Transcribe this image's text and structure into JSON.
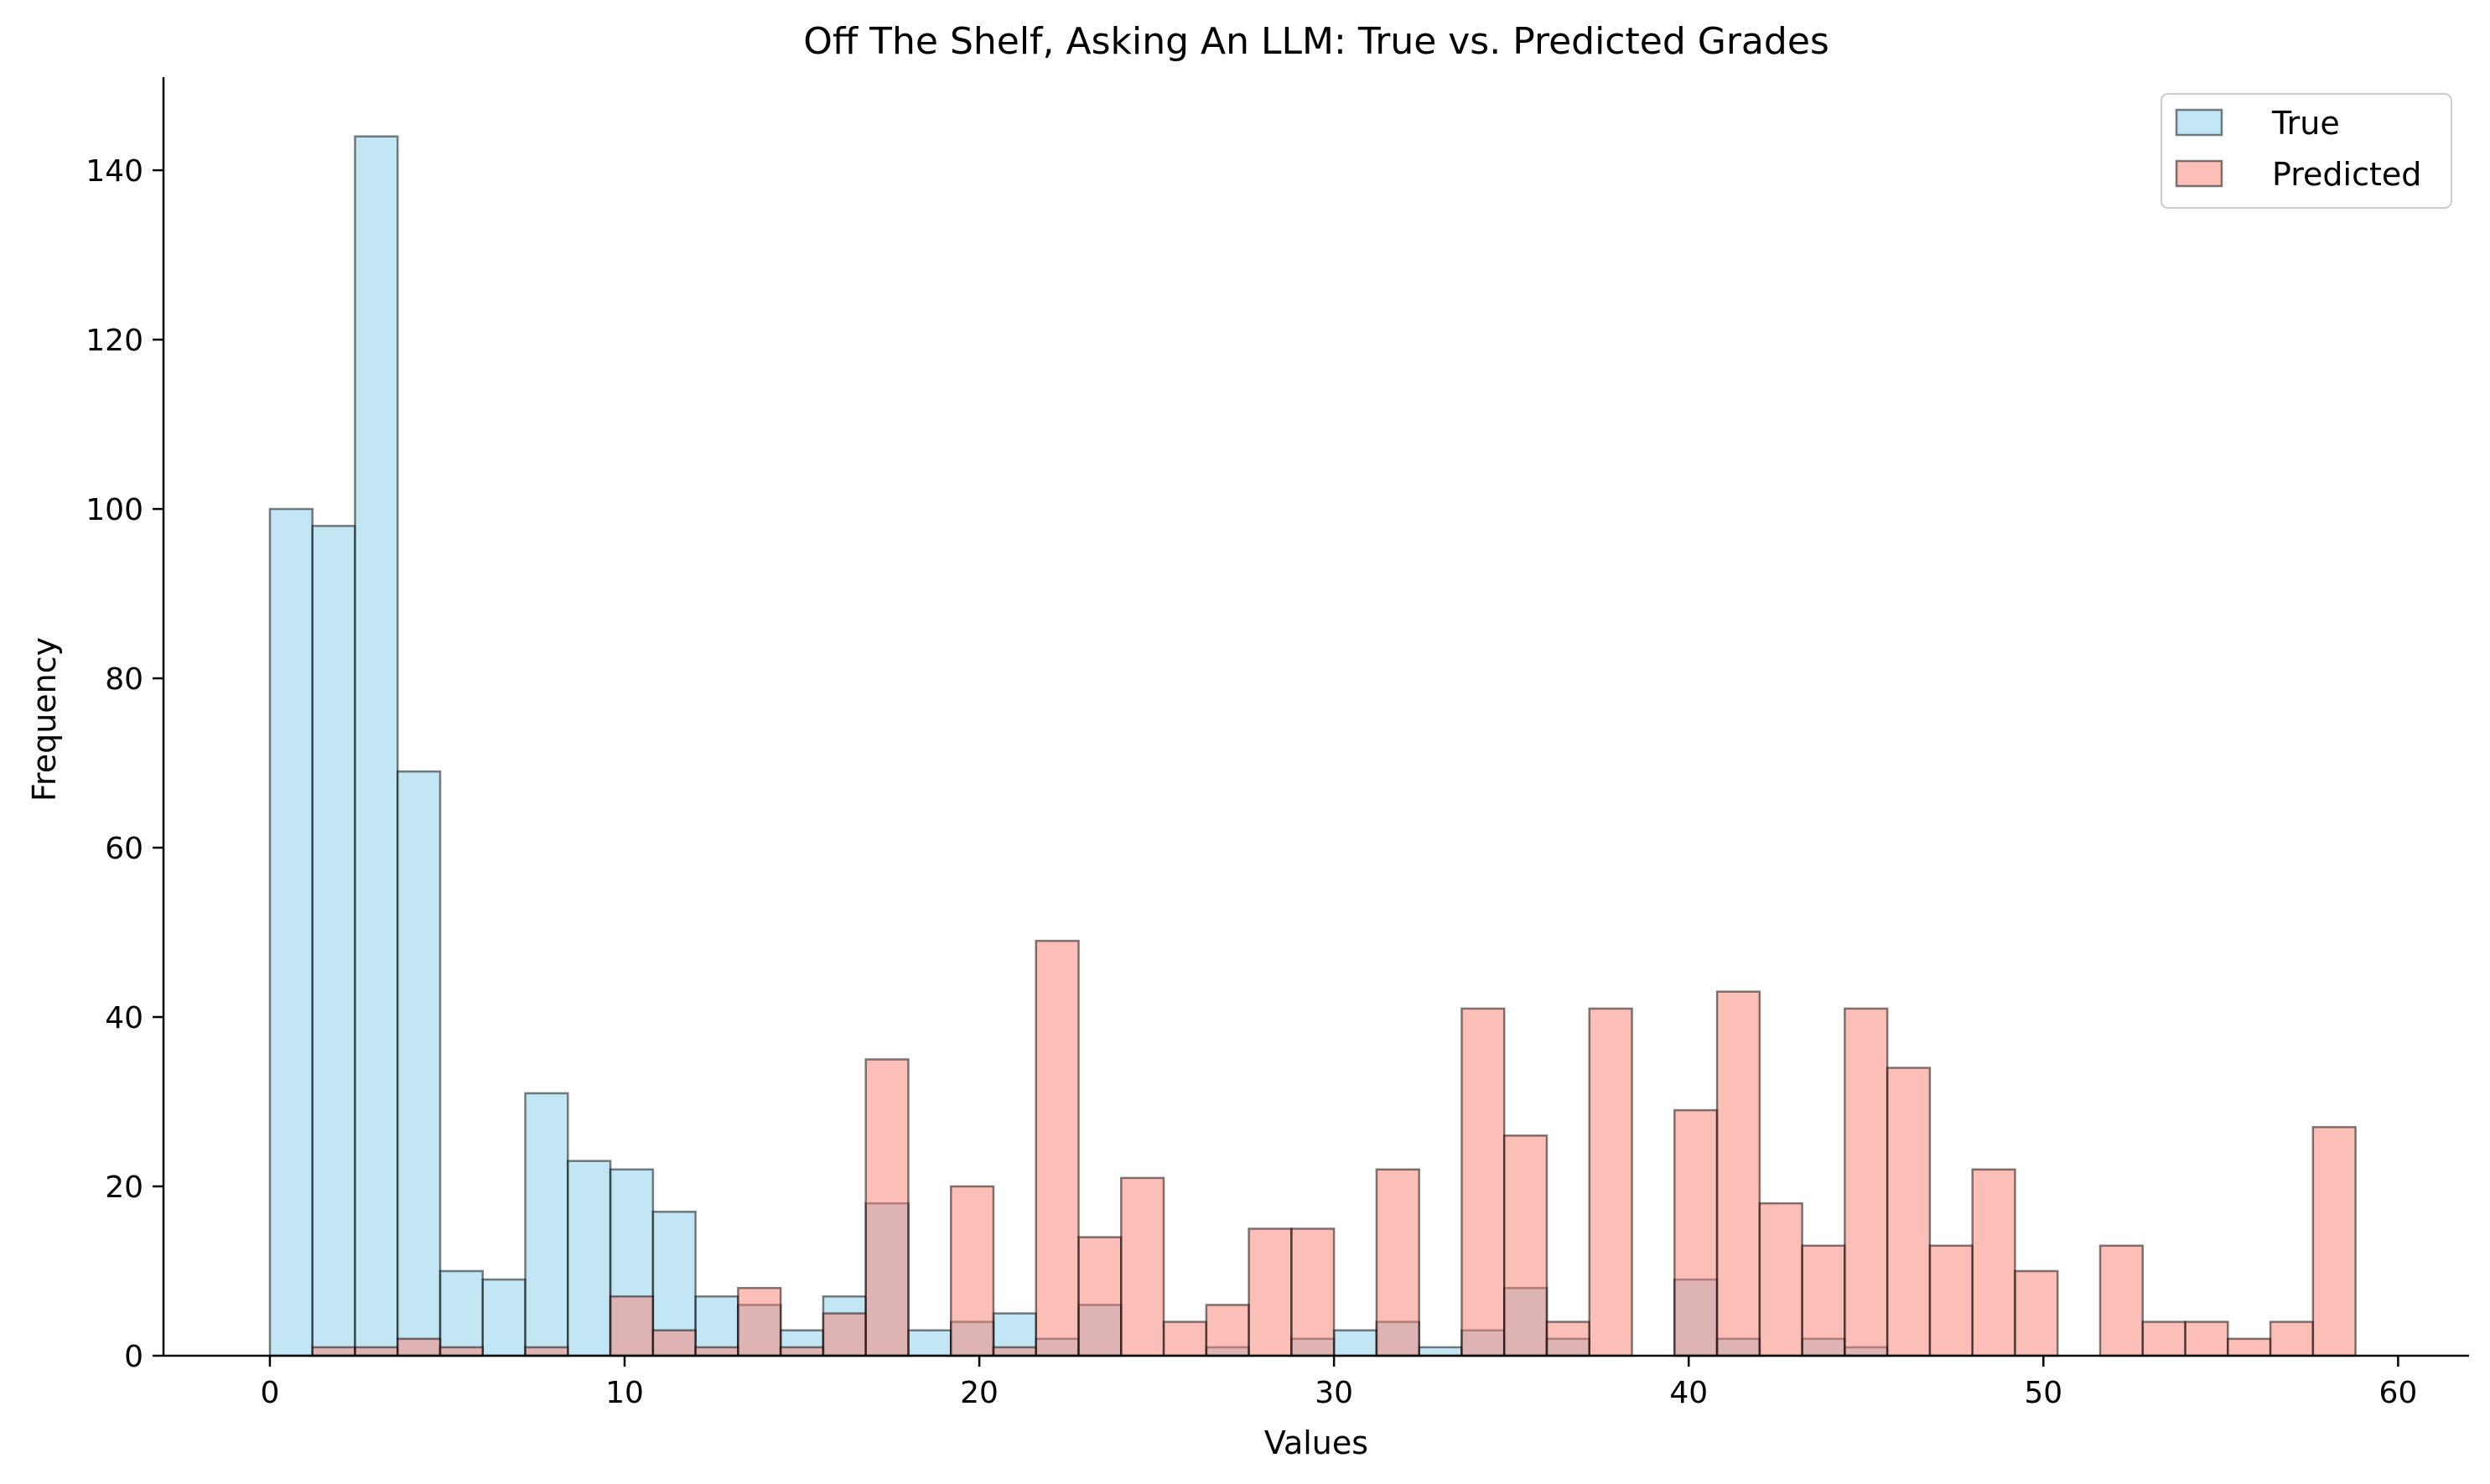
{
  "chart_data": {
    "type": "bar",
    "title": "Off The Shelf, Asking An LLM: True vs. Predicted Grades",
    "xlabel": "Values",
    "ylabel": "Frequency",
    "xlim": [
      -3,
      62
    ],
    "ylim": [
      0,
      151
    ],
    "xticks": [
      0,
      10,
      20,
      30,
      40,
      50,
      60
    ],
    "yticks": [
      0,
      20,
      40,
      60,
      80,
      100,
      120,
      140
    ],
    "grid": false,
    "legend": "top-right",
    "bin_width": 1.2,
    "bin_starts": [
      0,
      1.2,
      2.4,
      3.6,
      4.8,
      6,
      7.2,
      8.4,
      9.6,
      10.8,
      12,
      13.2,
      14.4,
      15.6,
      16.8,
      18,
      19.2,
      20.4,
      21.6,
      22.8,
      24,
      25.2,
      26.4,
      27.6,
      28.8,
      30,
      31.2,
      32.4,
      33.6,
      34.8,
      36,
      37.2,
      38.4,
      39.6,
      40.8,
      42,
      43.2,
      44.4,
      45.6,
      46.8,
      48,
      49.2,
      50.4,
      51.6,
      52.8,
      54,
      55.2,
      56.4,
      57.6
    ],
    "series": [
      {
        "name": "True",
        "color": "#87CEEB",
        "values": [
          100,
          98,
          144,
          69,
          10,
          9,
          31,
          23,
          22,
          17,
          7,
          6,
          3,
          7,
          18,
          3,
          4,
          5,
          2,
          6,
          0,
          0,
          1,
          0,
          2,
          3,
          4,
          1,
          3,
          8,
          2,
          0,
          0,
          9,
          2,
          0,
          2,
          1,
          0,
          0,
          0,
          0,
          0,
          0,
          0,
          0,
          0,
          0,
          0
        ]
      },
      {
        "name": "Predicted",
        "color": "#FA8072",
        "values": [
          0,
          1,
          1,
          2,
          1,
          0,
          1,
          0,
          7,
          3,
          1,
          8,
          1,
          5,
          35,
          0,
          20,
          1,
          49,
          14,
          21,
          4,
          6,
          15,
          15,
          0,
          22,
          0,
          41,
          26,
          4,
          41,
          0,
          29,
          43,
          18,
          13,
          41,
          34,
          13,
          22,
          10,
          0,
          13,
          4,
          4,
          2,
          4,
          27
        ]
      }
    ]
  }
}
